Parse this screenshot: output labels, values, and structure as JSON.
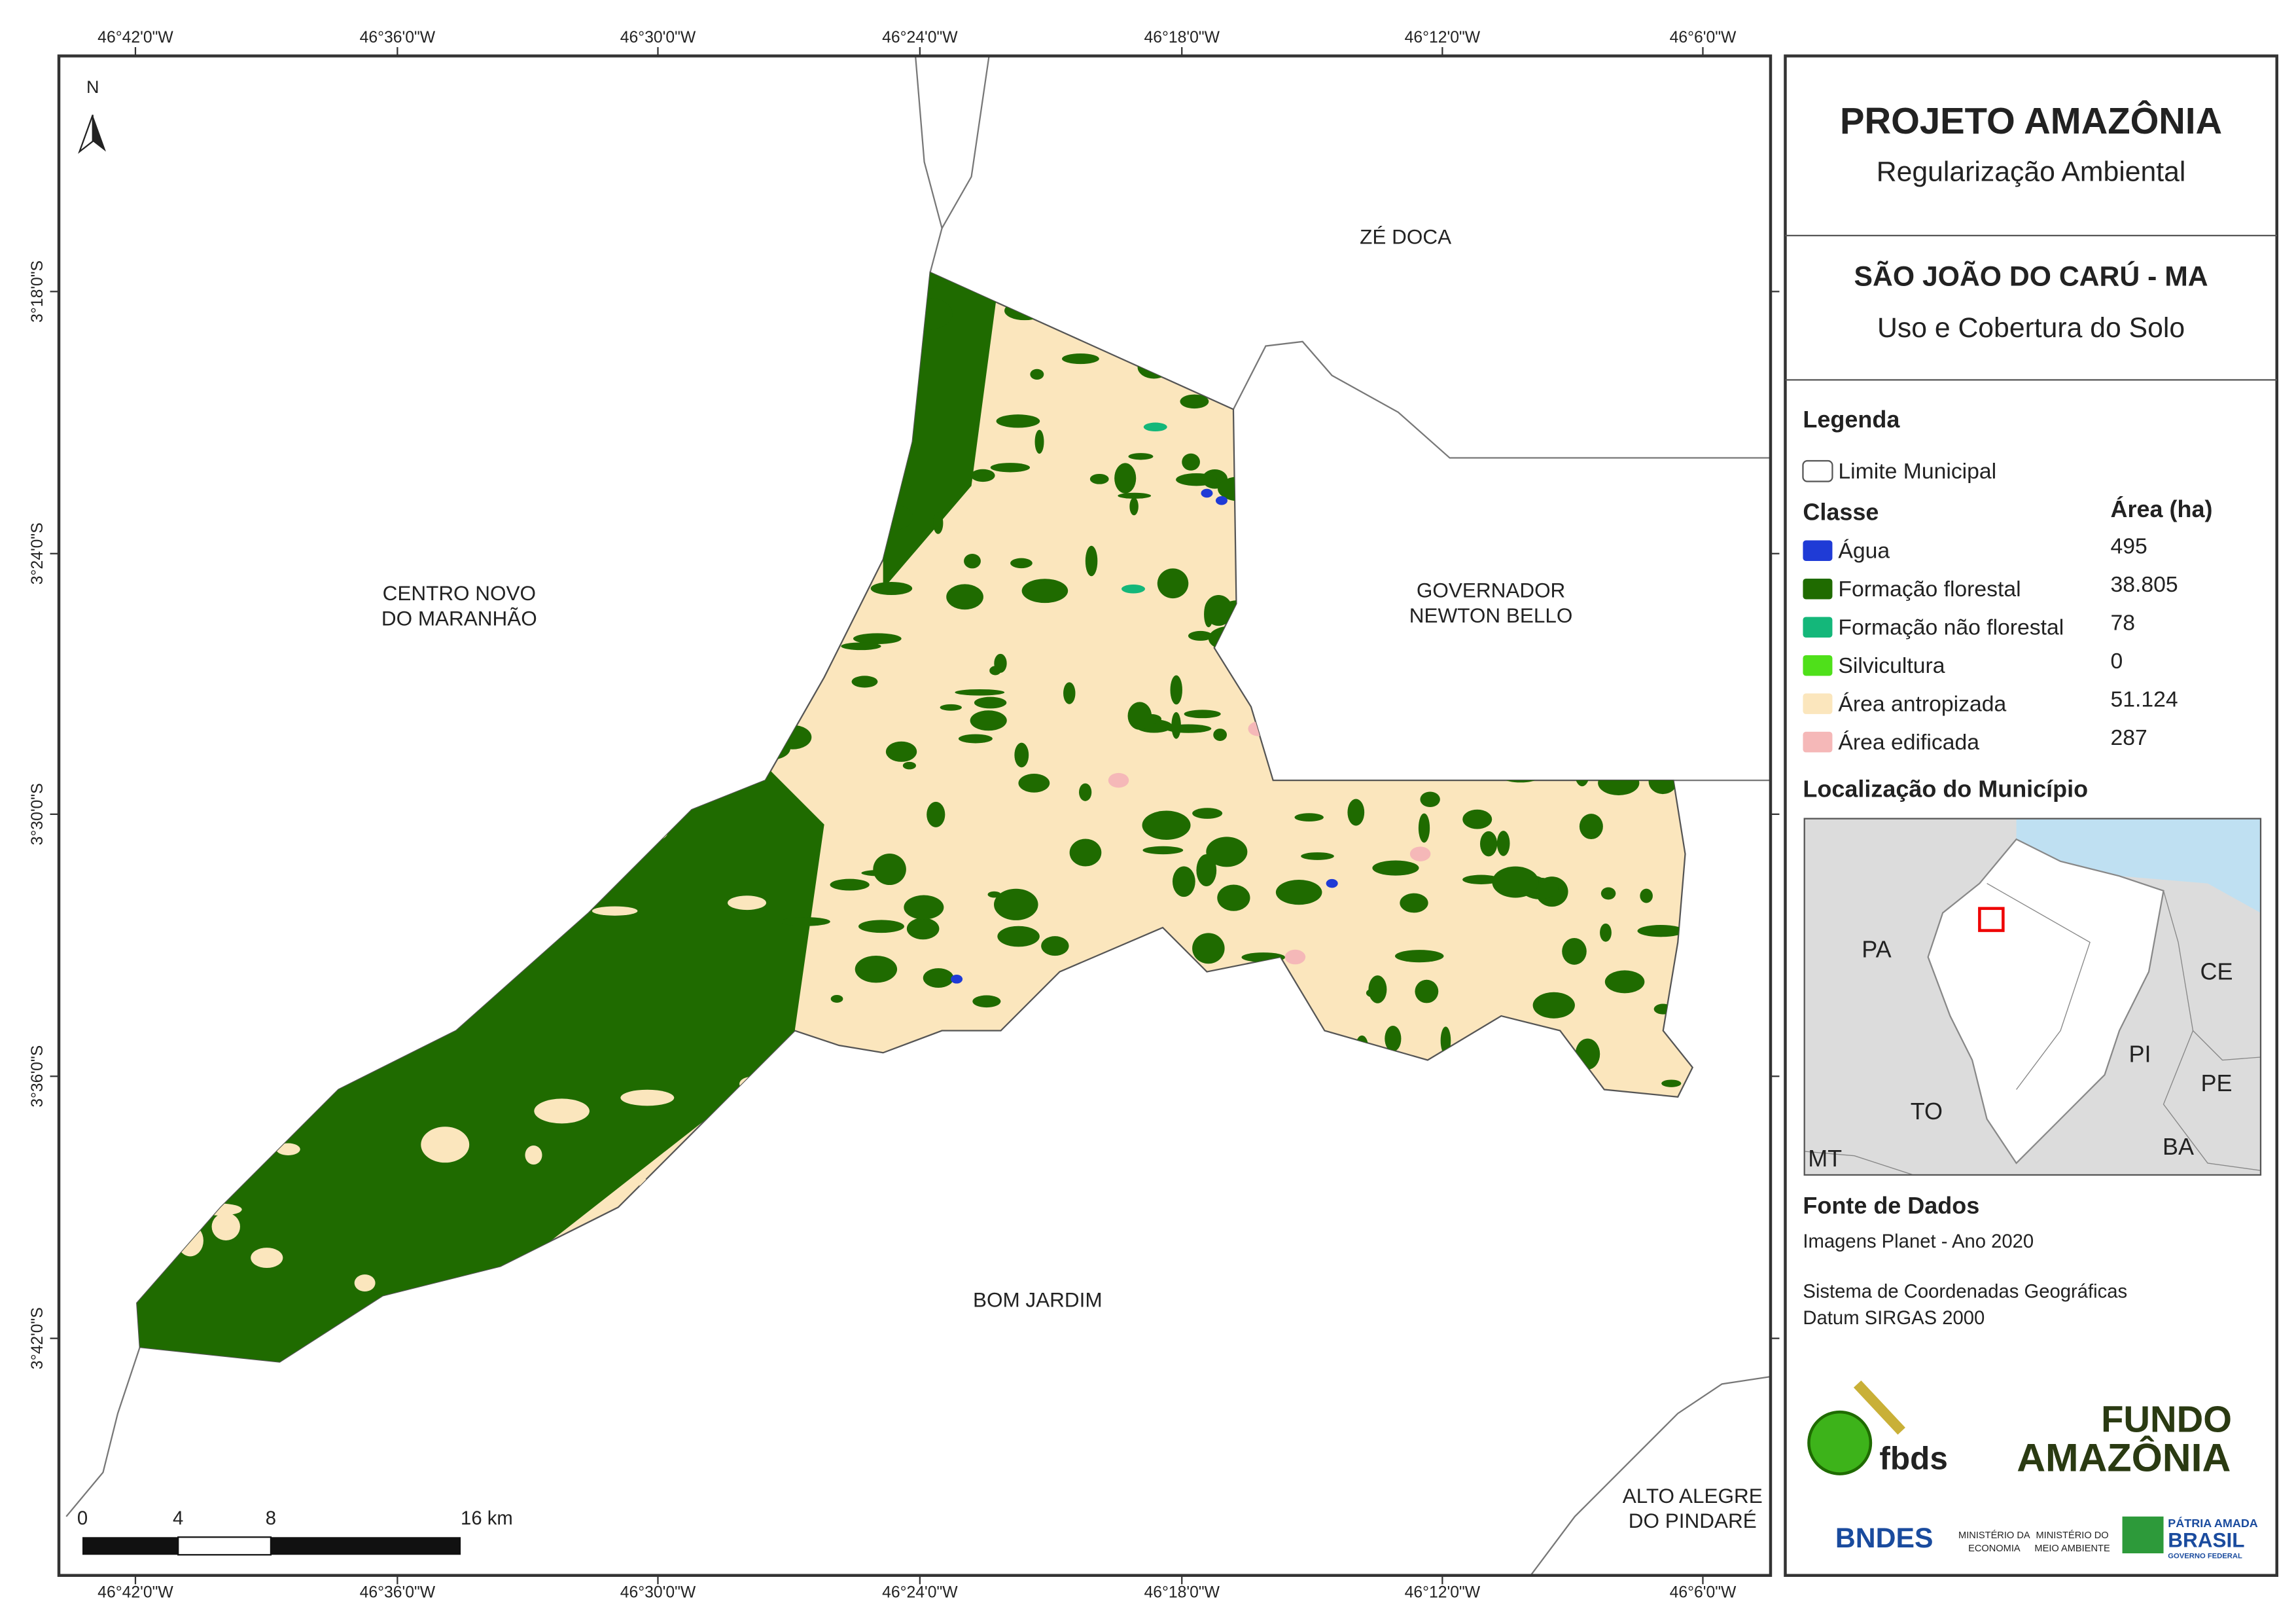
{
  "map": {
    "north_arrow": "N",
    "lon_labels": [
      "46°42'0\"W",
      "46°36'0\"W",
      "46°30'0\"W",
      "46°24'0\"W",
      "46°18'0\"W",
      "46°12'0\"W",
      "46°6'0\"W"
    ],
    "lat_labels": [
      "3°18'0\"S",
      "3°24'0\"S",
      "3°30'0\"S",
      "3°36'0\"S",
      "3°42'0\"S"
    ],
    "neighbors": [
      {
        "lines": [
          "ZÉ DOCA"
        ]
      },
      {
        "lines": [
          "CENTRO NOVO",
          "DO MARANHÃO"
        ]
      },
      {
        "lines": [
          "GOVERNADOR",
          "NEWTON BELLO"
        ]
      },
      {
        "lines": [
          "BOM JARDIM"
        ]
      },
      {
        "lines": [
          "ALTO ALEGRE",
          "DO PINDARÉ"
        ]
      }
    ],
    "scale_bar": [
      "0",
      "4",
      "8",
      "16 km"
    ]
  },
  "panel": {
    "title": "PROJETO AMAZÔNIA",
    "subtitle": "Regularização Ambiental",
    "municipality": "SÃO JOÃO DO CARÚ - MA",
    "theme": "Uso e Cobertura do Solo",
    "legend": {
      "title": "Legenda",
      "boundary": "Limite Municipal",
      "class_header": "Classe",
      "area_header": "Área (ha)",
      "classes": [
        {
          "name": "Água",
          "color": "#1f3bd6",
          "area": "495"
        },
        {
          "name": "Formação florestal",
          "color": "#1f6b00",
          "area": "38.805"
        },
        {
          "name": "Formação não florestal",
          "color": "#14b77a",
          "area": "78"
        },
        {
          "name": "Silvicultura",
          "color": "#4fe01a",
          "area": "0"
        },
        {
          "name": "Área antropizada",
          "color": "#fbe6bd",
          "area": "51.124"
        },
        {
          "name": "Área edificada",
          "color": "#f5b8b8",
          "area": "287"
        }
      ]
    },
    "location": {
      "title": "Localização do Município",
      "states": [
        "PA",
        "CE",
        "PI",
        "PE",
        "TO",
        "BA",
        "MT"
      ]
    },
    "sources": {
      "title": "Fonte de Dados",
      "lines": [
        "Imagens Planet - Ano 2020",
        "Sistema de Coordenadas Geográficas",
        "Datum SIRGAS 2000"
      ]
    },
    "logos": {
      "fbds": "fbds",
      "fundo": "FUNDO",
      "amazonia": "AMAZÔNIA",
      "bndes": "BNDES",
      "economia": [
        "MINISTÉRIO DA",
        "ECONOMIA"
      ],
      "meio_ambiente": [
        "MINISTÉRIO DO",
        "MEIO AMBIENTE"
      ],
      "patria": [
        "PÁTRIA AMADA",
        "BRASIL",
        "GOVERNO FEDERAL"
      ]
    }
  }
}
